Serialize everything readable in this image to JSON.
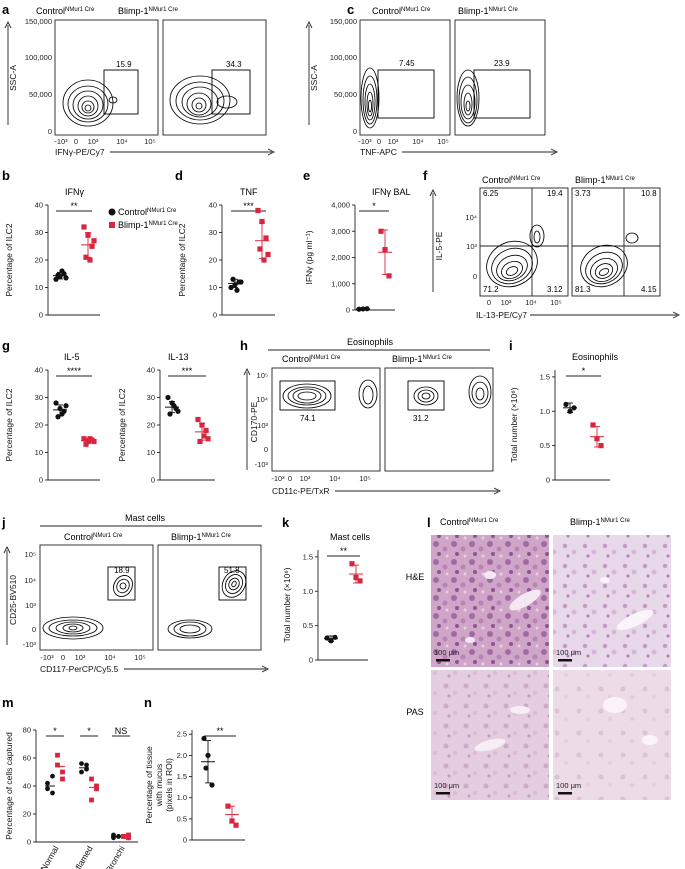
{
  "colors": {
    "control": "#111111",
    "blimp": "#d7263d"
  },
  "flow_panels": [
    {
      "id": "a",
      "ylabel": "SSC-A",
      "xlabel": "IFNγ-PE/Cy7",
      "yticks": [
        "150,000",
        "100,000",
        "50,000",
        "0"
      ],
      "xticks": [
        "-10³",
        "0",
        "10³",
        "10⁴",
        "10⁵"
      ],
      "plots": [
        {
          "title": "Control",
          "sup": "NMur1 Cre",
          "gate": "15.9"
        },
        {
          "title": "Blimp-1",
          "sup": "NMur1 Cre",
          "gate": "34.3"
        }
      ]
    },
    {
      "id": "c",
      "ylabel": "SSC-A",
      "xlabel": "TNF-APC",
      "yticks": [
        "150,000",
        "100,000",
        "50,000",
        "0"
      ],
      "xticks": [
        "-10³",
        "0",
        "10³",
        "10⁴",
        "10⁵"
      ],
      "plots": [
        {
          "title": "Control",
          "sup": "NMur1 Cre",
          "gate": "7.45"
        },
        {
          "title": "Blimp-1",
          "sup": "NMur1 Cre",
          "gate": "23.9"
        }
      ]
    },
    {
      "id": "f",
      "ylabel": "IL-5-PE",
      "xlabel": "IL-13-PE/Cy7",
      "yticks": [
        "10⁴",
        "10³",
        "0"
      ],
      "xticks": [
        "0",
        "10³",
        "10⁴",
        "10⁵"
      ],
      "plots": [
        {
          "title": "Control",
          "sup": "NMur1 Cre",
          "quadrants": [
            "6.25",
            "19.4",
            "71.2",
            "3.12"
          ]
        },
        {
          "title": "Blimp-1",
          "sup": "NMur1 Cre",
          "quadrants": [
            "3.73",
            "10.8",
            "81.3",
            "4.15"
          ]
        }
      ]
    },
    {
      "id": "h",
      "header": "Eosinophils",
      "ylabel": "CD170-PE",
      "xlabel": "CD11c-PE/TxR",
      "yticks": [
        "10⁵",
        "10⁴",
        "10³",
        "0",
        "-10³"
      ],
      "xticks": [
        "-10³",
        "0",
        "10³",
        "10⁴",
        "10⁵"
      ],
      "plots": [
        {
          "title": "Control",
          "sup": "NMur1 Cre",
          "gate": "74.1"
        },
        {
          "title": "Blimp-1",
          "sup": "NMur1 Cre",
          "gate": "31.2"
        }
      ]
    },
    {
      "id": "j",
      "header": "Mast cells",
      "ylabel": "CD25-BV510",
      "xlabel": "CD117-PerCP/Cy5.5",
      "yticks": [
        "10⁵",
        "10⁴",
        "10³",
        "0",
        "-10³"
      ],
      "xticks": [
        "-10³",
        "0",
        "10³",
        "10⁴",
        "10⁵"
      ],
      "plots": [
        {
          "title": "Control",
          "sup": "NMur1 Cre",
          "gate": "18.9"
        },
        {
          "title": "Blimp-1",
          "sup": "NMur1 Cre",
          "gate": "51.8"
        }
      ]
    }
  ],
  "legend": {
    "control": "Control",
    "control_sup": "NMur1 Cre",
    "blimp": "Blimp-1",
    "blimp_sup": "NMur1 Cre"
  },
  "chart_data": [
    {
      "id": "b",
      "type": "scatter",
      "title": "IFNγ",
      "ylabel": "Percentage of ILC2",
      "yticks": [
        0,
        10,
        20,
        30,
        40
      ],
      "ylim": [
        0,
        40
      ],
      "sig": "**",
      "groups": [
        {
          "name": "Control",
          "values": [
            13,
            14,
            15,
            14.5,
            16,
            13.5
          ],
          "mean": 14.3,
          "sd": 1.2
        },
        {
          "name": "Blimp-1",
          "values": [
            32,
            29,
            25,
            21,
            20,
            27
          ],
          "mean": 25.5,
          "sd": 4.5
        }
      ]
    },
    {
      "id": "d",
      "type": "scatter",
      "title": "TNF",
      "ylabel": "Percentage of ILC2",
      "yticks": [
        0,
        10,
        20,
        30,
        40
      ],
      "ylim": [
        0,
        40
      ],
      "sig": "***",
      "groups": [
        {
          "name": "Control",
          "values": [
            10,
            11,
            12,
            13,
            9,
            12
          ],
          "mean": 11.5,
          "sd": 1.5
        },
        {
          "name": "Blimp-1",
          "values": [
            38,
            34,
            28,
            24,
            20,
            22
          ],
          "mean": 27,
          "sd": 6.5
        }
      ]
    },
    {
      "id": "e",
      "type": "scatter",
      "title": "IFNγ BAL",
      "ylabel": "IFNγ (pg ml⁻¹)",
      "yticks": [
        0,
        1000,
        2000,
        3000,
        4000
      ],
      "ytick_labels": [
        "0",
        "1,000",
        "2,000",
        "3,000",
        "4,000"
      ],
      "ylim": [
        0,
        4000
      ],
      "sig": "*",
      "groups": [
        {
          "name": "Control",
          "values": [
            30,
            40,
            50
          ],
          "mean": 40,
          "sd": 10
        },
        {
          "name": "Blimp-1",
          "values": [
            3000,
            2300,
            1300
          ],
          "mean": 2200,
          "sd": 850
        }
      ]
    },
    {
      "id": "g1",
      "type": "scatter",
      "title": "IL-5",
      "ylabel": "Percentage of ILC2",
      "yticks": [
        0,
        10,
        20,
        30,
        40
      ],
      "ylim": [
        0,
        40
      ],
      "sig": "****",
      "groups": [
        {
          "name": "Control",
          "values": [
            28,
            26,
            25,
            23,
            24,
            27
          ],
          "mean": 25.5,
          "sd": 1.8
        },
        {
          "name": "Blimp-1",
          "values": [
            15,
            14,
            14.5,
            13,
            15,
            14
          ],
          "mean": 14.3,
          "sd": 0.8
        }
      ]
    },
    {
      "id": "g2",
      "type": "scatter",
      "title": "IL-13",
      "ylabel": "Percentage of ILC2",
      "yticks": [
        0,
        10,
        20,
        30,
        40
      ],
      "ylim": [
        0,
        40
      ],
      "sig": "***",
      "groups": [
        {
          "name": "Control",
          "values": [
            30,
            28,
            26,
            24,
            27,
            25
          ],
          "mean": 26.5,
          "sd": 2
        },
        {
          "name": "Blimp-1",
          "values": [
            22,
            20,
            18,
            14,
            16,
            15
          ],
          "mean": 17.5,
          "sd": 3
        }
      ]
    },
    {
      "id": "i",
      "type": "scatter",
      "title": "Eosinophils",
      "ylabel": "Total number (×10⁶)",
      "yticks": [
        0,
        0.5,
        1.0,
        1.5
      ],
      "ytick_labels": [
        "0",
        "0.5",
        "1.0",
        "1.5"
      ],
      "ylim": [
        0,
        1.6
      ],
      "sig": "*",
      "groups": [
        {
          "name": "Control",
          "values": [
            1.1,
            1.0,
            1.05
          ],
          "mean": 1.05,
          "sd": 0.07
        },
        {
          "name": "Blimp-1",
          "values": [
            0.8,
            0.6,
            0.5
          ],
          "mean": 0.63,
          "sd": 0.15
        }
      ]
    },
    {
      "id": "k",
      "type": "scatter",
      "title": "Mast cells",
      "ylabel": "Total number (×10⁶)",
      "yticks": [
        0,
        0.5,
        1.0,
        1.5
      ],
      "ytick_labels": [
        "0",
        "0.5",
        "1.0",
        "1.5"
      ],
      "ylim": [
        0,
        1.6
      ],
      "sig": "**",
      "groups": [
        {
          "name": "Control",
          "values": [
            0.32,
            0.28,
            0.33
          ],
          "mean": 0.31,
          "sd": 0.04
        },
        {
          "name": "Blimp-1",
          "values": [
            1.4,
            1.2,
            1.15
          ],
          "mean": 1.25,
          "sd": 0.13
        }
      ]
    },
    {
      "id": "m",
      "type": "scatter",
      "ylabel": "Percentage of cells captured",
      "yticks": [
        0,
        20,
        40,
        60,
        80
      ],
      "ylim": [
        0,
        80
      ],
      "categories": [
        "Normal",
        "Inflamed",
        "Bronchi"
      ],
      "sig": [
        "*",
        "*",
        "NS"
      ],
      "series": [
        {
          "name": "Control",
          "values": [
            [
              38,
              35,
              42,
              47
            ],
            [
              56,
              52,
              50,
              55
            ],
            [
              5,
              4,
              3,
              4
            ]
          ],
          "means": [
            40,
            53,
            4
          ]
        },
        {
          "name": "Blimp-1",
          "values": [
            [
              62,
              50,
              55,
              45
            ],
            [
              45,
              38,
              30,
              40
            ],
            [
              4,
              5,
              4,
              3
            ]
          ],
          "means": [
            54,
            39,
            4
          ]
        }
      ]
    },
    {
      "id": "n",
      "type": "scatter",
      "ylabel": "Percentage of tissue with mucus (pixels in ROI)",
      "ylabel_lines": [
        "Percentage of tissue",
        "with mucus",
        "(pixels in ROI)"
      ],
      "yticks": [
        0,
        0.5,
        1.0,
        1.5,
        2.0,
        2.5
      ],
      "ytick_labels": [
        "0",
        "0.5",
        "1.0",
        "1.5",
        "2.0",
        "2.5"
      ],
      "ylim": [
        0,
        2.6
      ],
      "sig": "**",
      "groups": [
        {
          "name": "Control",
          "values": [
            2.4,
            2.0,
            1.3,
            1.7
          ],
          "mean": 1.85,
          "sd": 0.5
        },
        {
          "name": "Blimp-1",
          "values": [
            0.8,
            0.45,
            0.35
          ],
          "mean": 0.6,
          "sd": 0.2
        }
      ]
    }
  ],
  "histology": {
    "columns": [
      {
        "title": "Control",
        "sup": "NMur1 Cre"
      },
      {
        "title": "Blimp-1",
        "sup": "NMur1 Cre"
      }
    ],
    "rows": [
      "H&E",
      "PAS"
    ],
    "scale_bar": "100 μm"
  }
}
